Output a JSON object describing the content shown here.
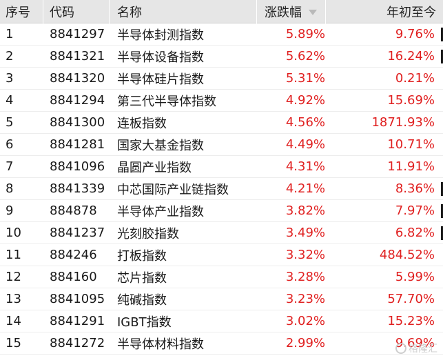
{
  "header": {
    "seq": "序号",
    "code": "代码",
    "name": "名称",
    "change": "涨跌幅",
    "ytd": "年初至今",
    "sort_icon": "sort-desc-icon"
  },
  "rows": [
    {
      "seq": "1",
      "code": "8841297",
      "name": "半导体封测指数",
      "change": "5.89%",
      "ytd": "9.76%"
    },
    {
      "seq": "2",
      "code": "8841321",
      "name": "半导体设备指数",
      "change": "5.62%",
      "ytd": "16.24%"
    },
    {
      "seq": "3",
      "code": "8841320",
      "name": "半导体硅片指数",
      "change": "5.31%",
      "ytd": "0.21%"
    },
    {
      "seq": "4",
      "code": "8841294",
      "name": "第三代半导体指数",
      "change": "4.92%",
      "ytd": "15.69%"
    },
    {
      "seq": "5",
      "code": "8841300",
      "name": "连板指数",
      "change": "4.56%",
      "ytd": "1871.93%"
    },
    {
      "seq": "6",
      "code": "8841281",
      "name": "国家大基金指数",
      "change": "4.49%",
      "ytd": "10.71%"
    },
    {
      "seq": "7",
      "code": "8841096",
      "name": "晶圆产业指数",
      "change": "4.31%",
      "ytd": "11.91%"
    },
    {
      "seq": "8",
      "code": "8841339",
      "name": "中芯国际产业链指数",
      "change": "4.21%",
      "ytd": "8.36%"
    },
    {
      "seq": "9",
      "code": "884878",
      "name": "半导体产业指数",
      "change": "3.82%",
      "ytd": "7.97%"
    },
    {
      "seq": "10",
      "code": "8841237",
      "name": "光刻胶指数",
      "change": "3.49%",
      "ytd": "6.82%"
    },
    {
      "seq": "11",
      "code": "884246",
      "name": "打板指数",
      "change": "3.32%",
      "ytd": "484.52%"
    },
    {
      "seq": "12",
      "code": "884160",
      "name": "芯片指数",
      "change": "3.28%",
      "ytd": "5.99%"
    },
    {
      "seq": "13",
      "code": "8841095",
      "name": "纯碱指数",
      "change": "3.23%",
      "ytd": "57.70%"
    },
    {
      "seq": "14",
      "code": "8841291",
      "name": "IGBT指数",
      "change": "3.02%",
      "ytd": "15.23%"
    },
    {
      "seq": "15",
      "code": "8841272",
      "name": "半导体材料指数",
      "change": "2.99%",
      "ytd": "9.69%"
    }
  ],
  "watermark": {
    "text": "格隆汇"
  },
  "colors": {
    "up": "#e02020",
    "header_bg": "#e6e6e6"
  }
}
